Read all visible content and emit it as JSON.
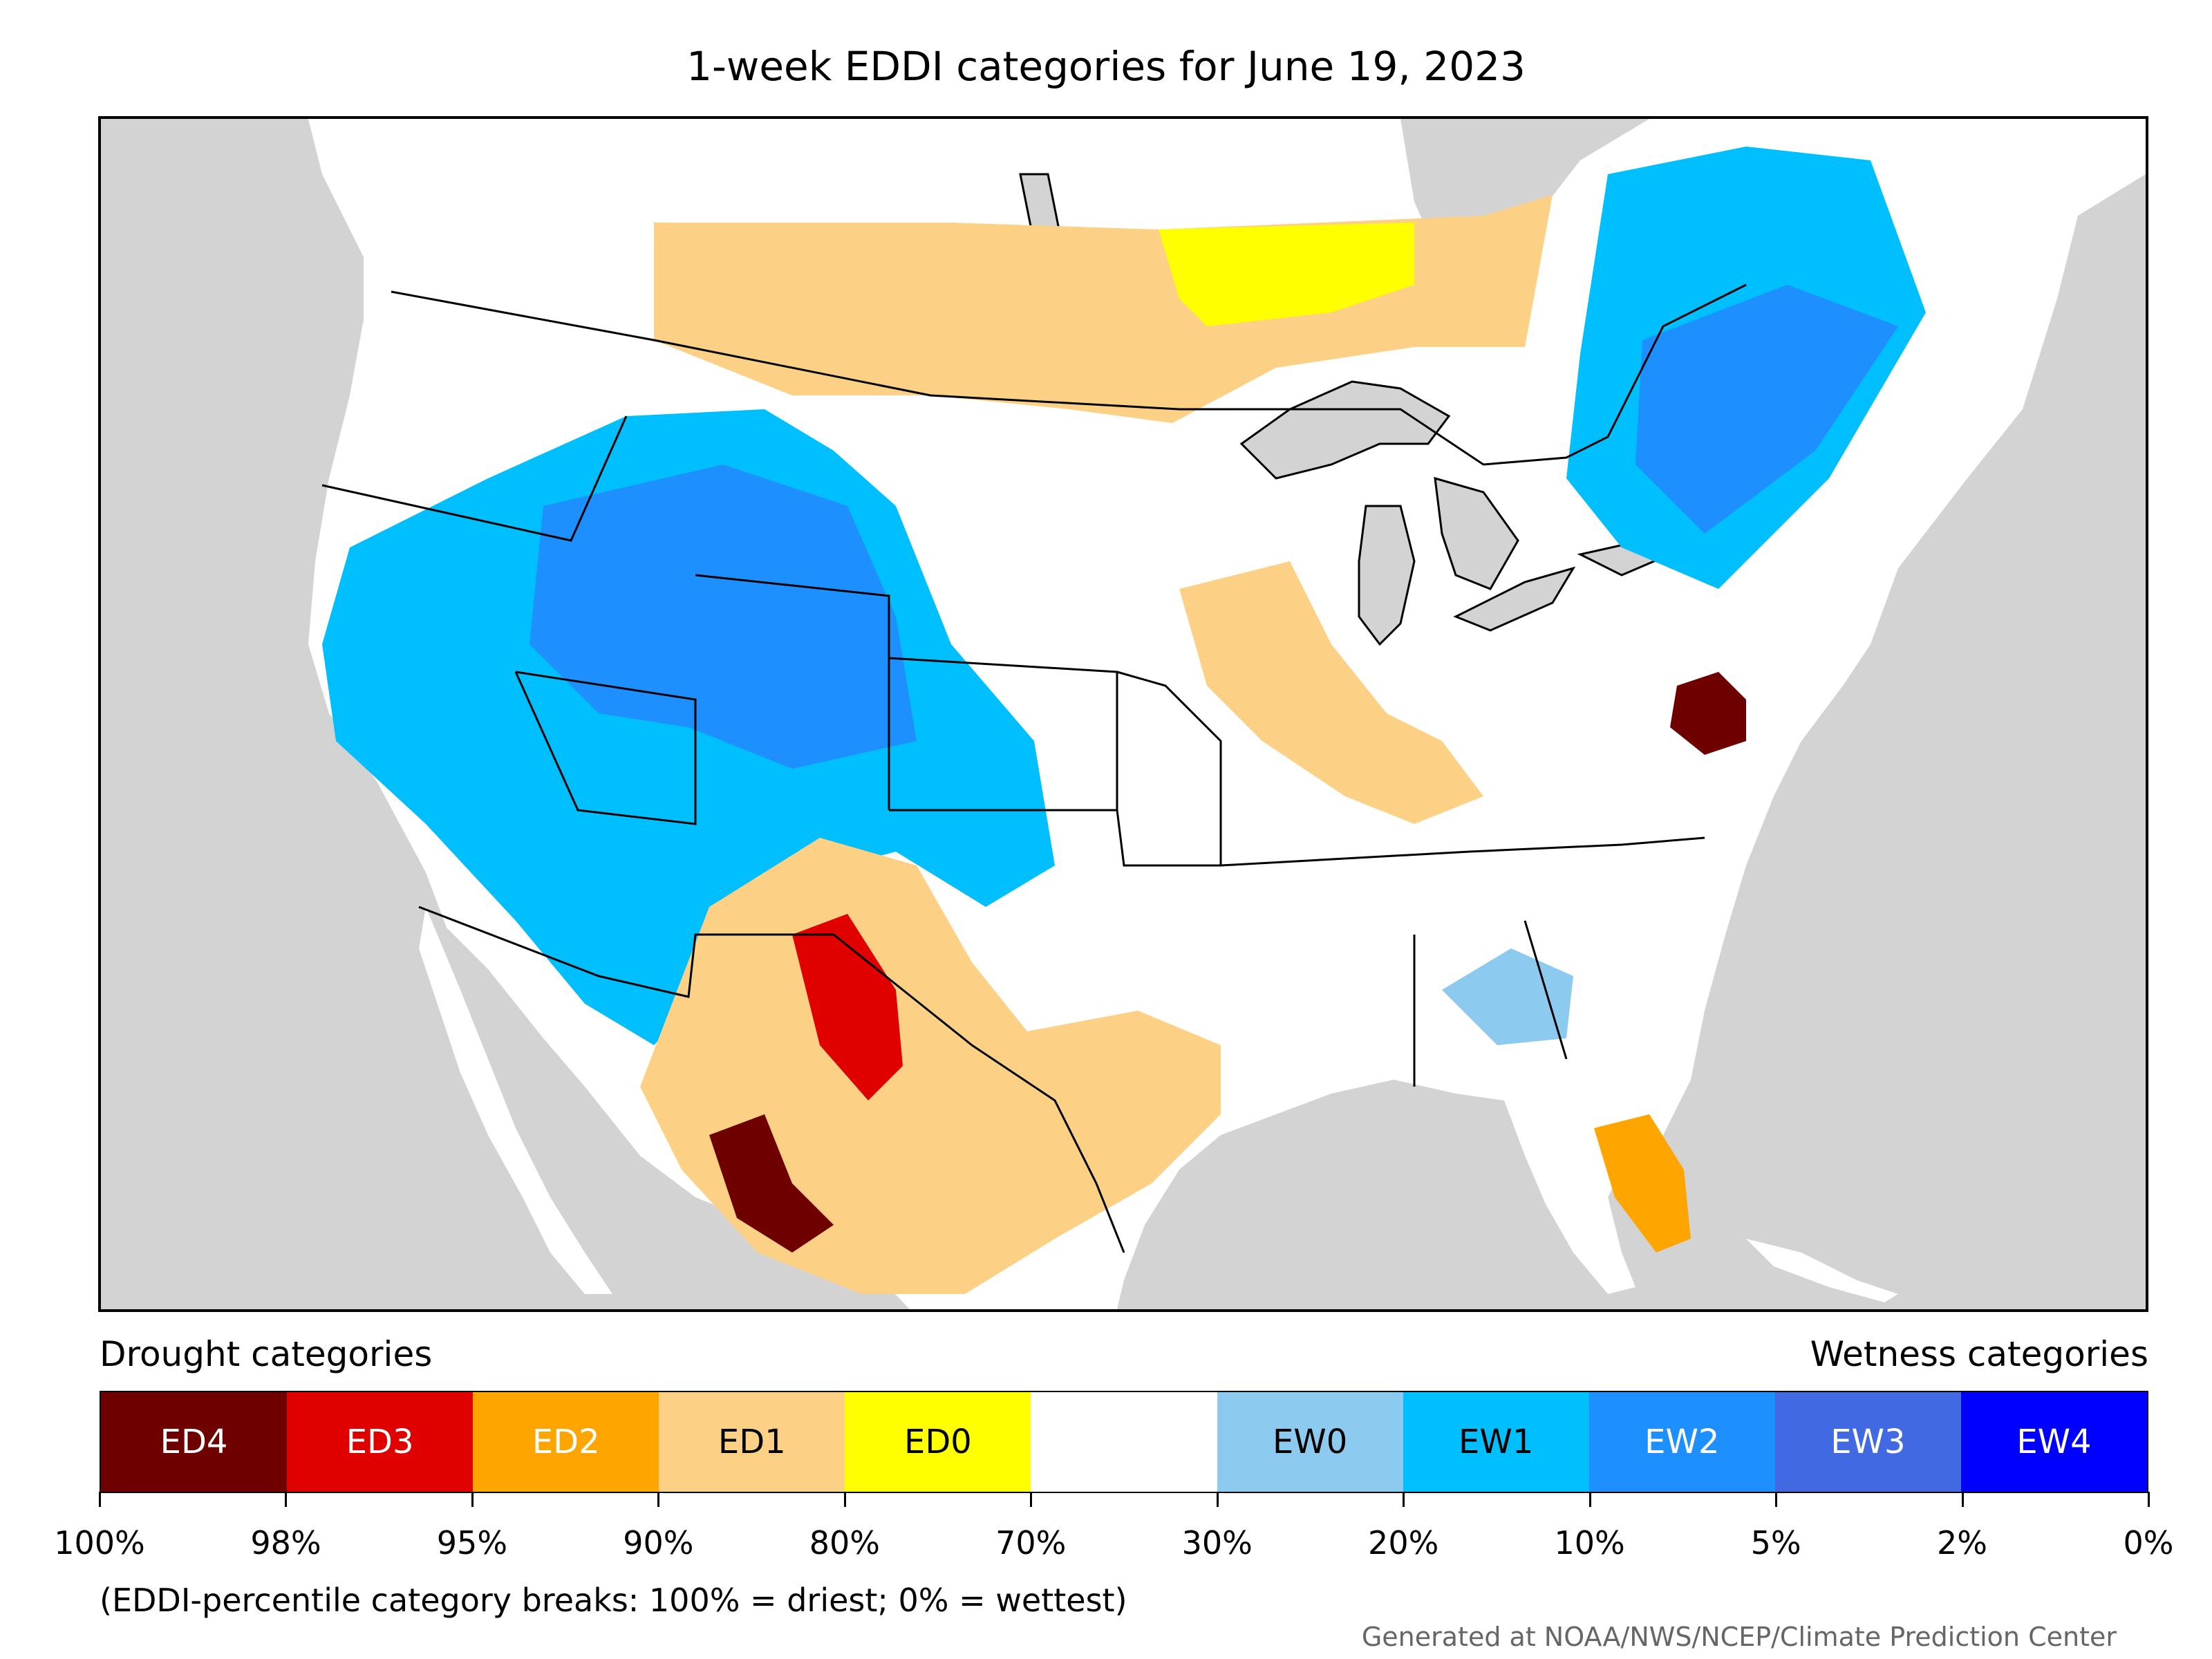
{
  "title": "1-week EDDI categories for June 19, 2023",
  "legend": {
    "drought_heading": "Drought categories",
    "wetness_heading": "Wetness categories",
    "categories": [
      {
        "label": "ED4",
        "color": "#6e0000",
        "text_color": "#ffffff"
      },
      {
        "label": "ED3",
        "color": "#e10000",
        "text_color": "#ffffff"
      },
      {
        "label": "ED2",
        "color": "#ffa500",
        "text_color": "#ffffff"
      },
      {
        "label": "ED1",
        "color": "#fdd185",
        "text_color": "#000000"
      },
      {
        "label": "ED0",
        "color": "#ffff00",
        "text_color": "#000000"
      },
      {
        "label": "",
        "color": "#ffffff",
        "text_color": "#000000"
      },
      {
        "label": "EW0",
        "color": "#8ccbef",
        "text_color": "#000000"
      },
      {
        "label": "EW1",
        "color": "#00bfff",
        "text_color": "#000000"
      },
      {
        "label": "EW2",
        "color": "#1e8fff",
        "text_color": "#ffffff"
      },
      {
        "label": "EW3",
        "color": "#4169e1",
        "text_color": "#ffffff"
      },
      {
        "label": "EW4",
        "color": "#0000ff",
        "text_color": "#ffffff"
      }
    ],
    "percentile_breaks": [
      "100%",
      "98%",
      "95%",
      "90%",
      "80%",
      "70%",
      "30%",
      "20%",
      "10%",
      "5%",
      "2%",
      "0%"
    ]
  },
  "note": "(EDDI-percentile category breaks: 100% = driest; 0% = wettest)",
  "credit": "Generated at NOAA/NWS/NCEP/Climate Prediction Center",
  "map": {
    "ocean_color": "#d3d3d3",
    "land_color": "#ffffff"
  }
}
